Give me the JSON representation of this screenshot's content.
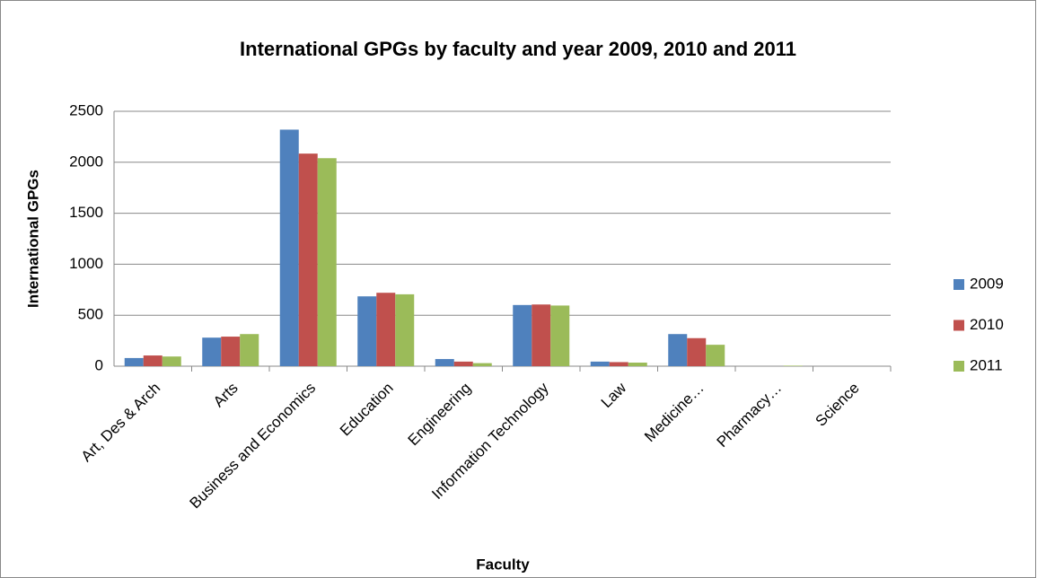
{
  "chart_data": {
    "type": "bar",
    "title": "International GPGs by faculty and year 2009, 2010 and 2011",
    "x_label": "Faculty",
    "y_label": "International GPGs",
    "categories": [
      "Art, Des & Arch",
      "Arts",
      "Business and Economics",
      "Education",
      "Engineering",
      "Information Technology",
      "Law",
      "Medicine…",
      "Pharmacy…",
      "Science"
    ],
    "series": [
      {
        "name": "2009",
        "color": "#4f81bd",
        "values": [
          80,
          280,
          2320,
          685,
          70,
          600,
          45,
          315,
          0,
          0
        ]
      },
      {
        "name": "2010",
        "color": "#c0504d",
        "values": [
          105,
          290,
          2085,
          720,
          45,
          605,
          40,
          275,
          0,
          0
        ]
      },
      {
        "name": "2011",
        "color": "#9bbb59",
        "values": [
          95,
          315,
          2040,
          705,
          30,
          595,
          35,
          210,
          5,
          0
        ]
      }
    ],
    "ylim": [
      0,
      2500
    ],
    "yticks": [
      0,
      500,
      1000,
      1500,
      2000,
      2500
    ],
    "grid": true,
    "legend": "right"
  }
}
